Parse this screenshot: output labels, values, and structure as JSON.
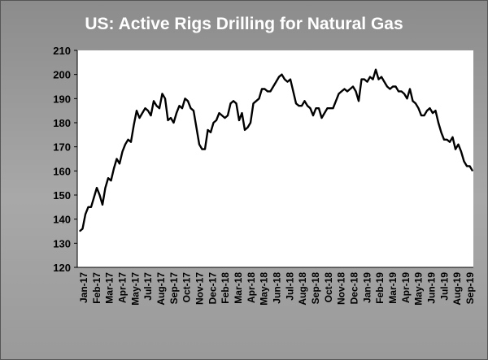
{
  "chart_data": {
    "type": "line",
    "title": "US: Active Rigs Drilling for Natural Gas",
    "xlabel": "",
    "ylabel": "",
    "ylim": [
      120,
      210
    ],
    "yticks": [
      120,
      130,
      140,
      150,
      160,
      170,
      180,
      190,
      200,
      210
    ],
    "grid": false,
    "legend": "none",
    "tick_labels": [
      "Jan-17",
      "Feb-17",
      "Mar-17",
      "Apr-17",
      "May-17",
      "Jul-17",
      "Aug-17",
      "Sep-17",
      "Oct-17",
      "Nov-17",
      "Dec-17",
      "Feb-18",
      "Mar-18",
      "Apr-18",
      "May-18",
      "Jun-18",
      "Jul-18",
      "Aug-18",
      "Sep-18",
      "Oct-18",
      "Nov-18",
      "Dec-18",
      "Jan-19",
      "Feb-19",
      "Mar-19",
      "Apr-19",
      "May-19",
      "Jun-19",
      "Jul-19",
      "Aug-19",
      "Sep-19"
    ],
    "series": [
      {
        "color": "#000000",
        "values": [
          135,
          136,
          142,
          145,
          145,
          149,
          153,
          150,
          146,
          153,
          157,
          156,
          161,
          165,
          163,
          168,
          171,
          173,
          172,
          179,
          185,
          182,
          184,
          186,
          185,
          183,
          189,
          187,
          186,
          192,
          190,
          181,
          182,
          180,
          184,
          187,
          186,
          190,
          189,
          186,
          185,
          178,
          171,
          169,
          169,
          177,
          176,
          180,
          181,
          184,
          183,
          182,
          183,
          188,
          189,
          188,
          181,
          184,
          177,
          178,
          180,
          188,
          189,
          190,
          194,
          194,
          193,
          193,
          195,
          197,
          199,
          200,
          198,
          197,
          198,
          193,
          188,
          187,
          187,
          189,
          187,
          186,
          183,
          186,
          186,
          182,
          184,
          186,
          186,
          186,
          189,
          192,
          193,
          194,
          193,
          194,
          195,
          193,
          189,
          198,
          198,
          197,
          199,
          198,
          202,
          198,
          199,
          197,
          195,
          194,
          195,
          195,
          193,
          193,
          192,
          190,
          194,
          189,
          188,
          186,
          183,
          183,
          185,
          186,
          184,
          185,
          180,
          176,
          173,
          173,
          172,
          174,
          169,
          171,
          168,
          164,
          162,
          162,
          160
        ]
      }
    ]
  }
}
